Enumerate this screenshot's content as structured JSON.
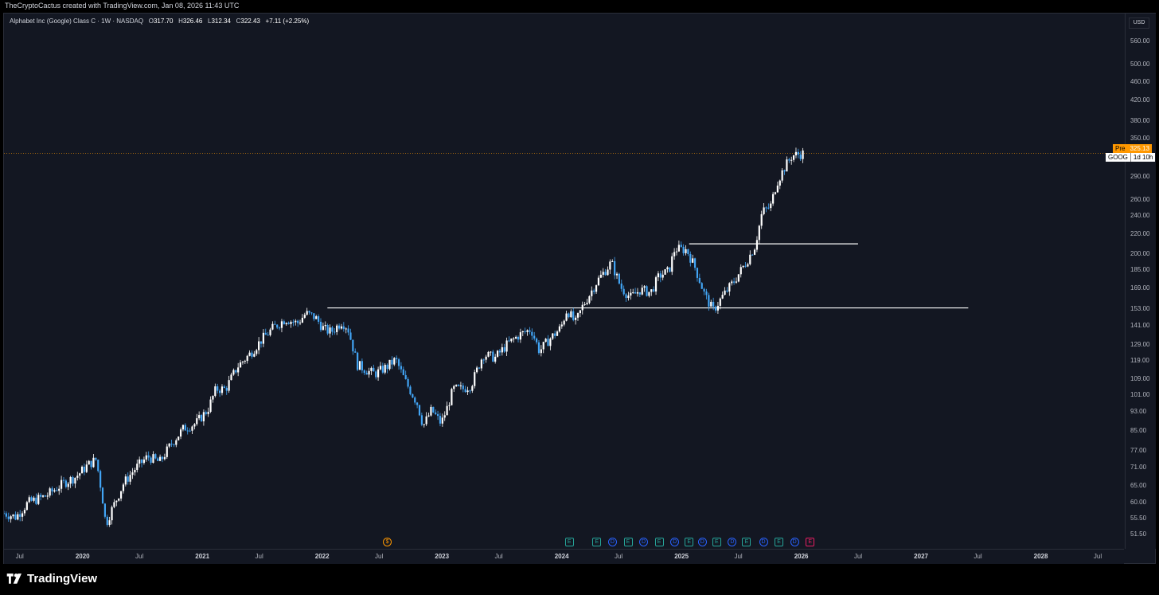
{
  "credit": "TheCryptoCactus created with TradingView.com, Jan 08, 2026 11:43 UTC",
  "legend": {
    "symbol": "Alphabet Inc (Google) Class C · 1W · NASDAQ",
    "open_label": "O",
    "open": "317.70",
    "high_label": "H",
    "high": "326.46",
    "low_label": "L",
    "low": "312.34",
    "close_label": "C",
    "close": "322.43",
    "change": "+7.11 (+2.25%)"
  },
  "currency": "USD",
  "pre_tag": {
    "label": "Pre",
    "price": "325.13"
  },
  "ticker_tag": {
    "label": "GOOG",
    "time": "1d 10h"
  },
  "brand": "TradingView",
  "colors": {
    "up": "#ffffff",
    "down": "#42a5f5",
    "background": "#131722",
    "line": "#ffffff",
    "last_price": "#ff9800"
  },
  "events": [
    {
      "kind": "S",
      "color": "#ff9800",
      "date": "2022.55"
    },
    {
      "kind": "E",
      "color": "#26a69a",
      "date": "2024.07"
    },
    {
      "kind": "E",
      "color": "#26a69a",
      "date": "2024.3"
    },
    {
      "kind": "D",
      "color": "#2962ff",
      "date": "2024.43"
    },
    {
      "kind": "E",
      "color": "#26a69a",
      "date": "2024.56"
    },
    {
      "kind": "D",
      "color": "#2962ff",
      "date": "2024.69"
    },
    {
      "kind": "E",
      "color": "#26a69a",
      "date": "2024.82"
    },
    {
      "kind": "D",
      "color": "#2962ff",
      "date": "2024.95"
    },
    {
      "kind": "E",
      "color": "#26a69a",
      "date": "2025.07"
    },
    {
      "kind": "D",
      "color": "#2962ff",
      "date": "2025.18"
    },
    {
      "kind": "E",
      "color": "#26a69a",
      "date": "2025.3"
    },
    {
      "kind": "D",
      "color": "#2962ff",
      "date": "2025.43"
    },
    {
      "kind": "E",
      "color": "#26a69a",
      "date": "2025.55"
    },
    {
      "kind": "D",
      "color": "#2962ff",
      "date": "2025.69"
    },
    {
      "kind": "E",
      "color": "#26a69a",
      "date": "2025.82"
    },
    {
      "kind": "D",
      "color": "#2962ff",
      "date": "2025.95"
    },
    {
      "kind": "E",
      "color": "#e91e63",
      "date": "2026.08"
    }
  ],
  "chart_data": {
    "type": "line",
    "title": "Alphabet Inc (Google) Class C · 1W · NASDAQ",
    "scale": "log",
    "ylim": [
      48,
      640
    ],
    "xlim": [
      "2019.35",
      "2028.7"
    ],
    "y_ticks": [
      51.5,
      55.5,
      60,
      65,
      71,
      77,
      85,
      93,
      101,
      109,
      119,
      129,
      141,
      153,
      169,
      185,
      200,
      220,
      240,
      260,
      290,
      350,
      380,
      420,
      460,
      500,
      560
    ],
    "x_ticks": [
      {
        "label": "Jul",
        "x": "2019.5",
        "year": false
      },
      {
        "label": "2020",
        "x": "2020.0",
        "year": true
      },
      {
        "label": "Jul",
        "x": "2020.5",
        "year": false
      },
      {
        "label": "2021",
        "x": "2021.0",
        "year": true
      },
      {
        "label": "Jul",
        "x": "2021.5",
        "year": false
      },
      {
        "label": "2022",
        "x": "2022.0",
        "year": true
      },
      {
        "label": "Jul",
        "x": "2022.5",
        "year": false
      },
      {
        "label": "2023",
        "x": "2023.0",
        "year": true
      },
      {
        "label": "Jul",
        "x": "2023.5",
        "year": false
      },
      {
        "label": "2024",
        "x": "2024.0",
        "year": true
      },
      {
        "label": "Jul",
        "x": "2024.5",
        "year": false
      },
      {
        "label": "2025",
        "x": "2025.0",
        "year": true
      },
      {
        "label": "Jul",
        "x": "2025.5",
        "year": false
      },
      {
        "label": "2026",
        "x": "2026.0",
        "year": true
      },
      {
        "label": "Jul",
        "x": "2026.5",
        "year": false
      },
      {
        "label": "2027",
        "x": "2027.0",
        "year": true
      },
      {
        "label": "Jul",
        "x": "2027.5",
        "year": false
      },
      {
        "label": "2028",
        "x": "2028.0",
        "year": true
      },
      {
        "label": "Jul",
        "x": "2028.5",
        "year": false
      }
    ],
    "price_path": [
      [
        "2019.35",
        57
      ],
      [
        "2019.45",
        56
      ],
      [
        "2019.55",
        60
      ],
      [
        "2019.7",
        62
      ],
      [
        "2019.85",
        66
      ],
      [
        "2019.95",
        68
      ],
      [
        "2020.05",
        72
      ],
      [
        "2020.12",
        74
      ],
      [
        "2020.17",
        62
      ],
      [
        "2020.2",
        54
      ],
      [
        "2020.25",
        58
      ],
      [
        "2020.35",
        66
      ],
      [
        "2020.45",
        71
      ],
      [
        "2020.55",
        75
      ],
      [
        "2020.65",
        73
      ],
      [
        "2020.75",
        80
      ],
      [
        "2020.85",
        86
      ],
      [
        "2020.95",
        88
      ],
      [
        "2021.05",
        94
      ],
      [
        "2021.12",
        104
      ],
      [
        "2021.2",
        104
      ],
      [
        "2021.3",
        116
      ],
      [
        "2021.4",
        123
      ],
      [
        "2021.5",
        132
      ],
      [
        "2021.6",
        140
      ],
      [
        "2021.7",
        146
      ],
      [
        "2021.8",
        143
      ],
      [
        "2021.87",
        150
      ],
      [
        "2021.95",
        147
      ],
      [
        "2022.02",
        139
      ],
      [
        "2022.08",
        137
      ],
      [
        "2022.17",
        144
      ],
      [
        "2022.22",
        140
      ],
      [
        "2022.3",
        117
      ],
      [
        "2022.4",
        113
      ],
      [
        "2022.45",
        112
      ],
      [
        "2022.55",
        116
      ],
      [
        "2022.62",
        120
      ],
      [
        "2022.7",
        108
      ],
      [
        "2022.8",
        97
      ],
      [
        "2022.85",
        87
      ],
      [
        "2022.92",
        94
      ],
      [
        "2023.0",
        88
      ],
      [
        "2023.05",
        95
      ],
      [
        "2023.1",
        104
      ],
      [
        "2023.18",
        104
      ],
      [
        "2023.25",
        106
      ],
      [
        "2023.35",
        123
      ],
      [
        "2023.45",
        121
      ],
      [
        "2023.55",
        129
      ],
      [
        "2023.65",
        135
      ],
      [
        "2023.75",
        139
      ],
      [
        "2023.82",
        125
      ],
      [
        "2023.9",
        132
      ],
      [
        "2024.0",
        140
      ],
      [
        "2024.05",
        153
      ],
      [
        "2024.12",
        143
      ],
      [
        "2024.18",
        155
      ],
      [
        "2024.3",
        175
      ],
      [
        "2024.42",
        192
      ],
      [
        "2024.5",
        170
      ],
      [
        "2024.58",
        162
      ],
      [
        "2024.66",
        168
      ],
      [
        "2024.75",
        166
      ],
      [
        "2024.82",
        180
      ],
      [
        "2024.9",
        184
      ],
      [
        "2024.95",
        205
      ],
      [
        "2025.05",
        204
      ],
      [
        "2025.12",
        187
      ],
      [
        "2025.2",
        164
      ],
      [
        "2025.27",
        152
      ],
      [
        "2025.35",
        163
      ],
      [
        "2025.45",
        176
      ],
      [
        "2025.55",
        193
      ],
      [
        "2025.62",
        208
      ],
      [
        "2025.68",
        245
      ],
      [
        "2025.75",
        252
      ],
      [
        "2025.8",
        282
      ],
      [
        "2025.87",
        305
      ],
      [
        "2025.93",
        322
      ],
      [
        "2026.02",
        325
      ]
    ],
    "horizontal_lines": [
      {
        "y": 154,
        "x_start": "2022.05",
        "x_end": "2027.4"
      },
      {
        "y": 210,
        "x_start": "2025.07",
        "x_end": "2026.48"
      }
    ],
    "last_price": 325.13
  }
}
